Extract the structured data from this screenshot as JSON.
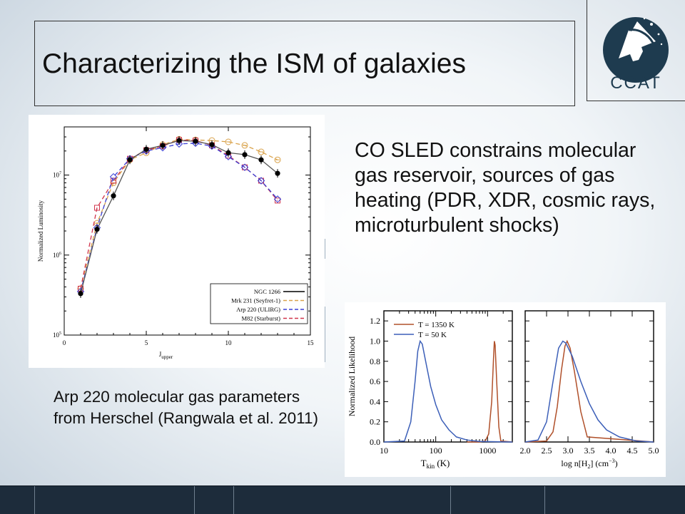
{
  "slide": {
    "title": "Characterizing the ISM of galaxies",
    "logo_text": "CCAT",
    "bullet": "CO SLED constrains molecular gas reservoir, sources of gas heating (PDR, XDR, cosmic rays, microturbulent shocks)",
    "caption": "Arp 220 molecular gas parameters from Herschel (Rangwala et al. 2011)",
    "colors": {
      "navy": "#1d2c3b",
      "logo": "#1e3b4f",
      "black": "#000000",
      "orange": "#d9a24a",
      "blue": "#3a3fd6",
      "red": "#d0344c",
      "brown": "#b0502a",
      "blue2": "#3c5fb8"
    }
  },
  "chart_data": [
    {
      "type": "line",
      "xlabel": "J_upper",
      "ylabel": "Normalized Luminosity",
      "xlim": [
        0,
        15
      ],
      "ylim": [
        100000,
        40000000
      ],
      "y_scale": "log",
      "x_ticks": [
        "0",
        "5",
        "10",
        "15"
      ],
      "y_ticks": [
        "10^5",
        "10^6",
        "10^7"
      ],
      "legend_position": "bottom-right",
      "x": [
        1,
        2,
        3,
        4,
        5,
        6,
        7,
        8,
        9,
        10,
        11,
        12,
        13
      ],
      "series": [
        {
          "name": "NGC 1266",
          "values": [
            330000,
            2100000,
            5500000,
            15500000,
            21000000,
            23500000,
            27000000,
            26500000,
            24000000,
            19000000,
            18000000,
            15500000,
            10500000
          ]
        },
        {
          "name": "Mrk 231 (Seyfret-1)",
          "values": [
            380000,
            2500000,
            8000000,
            15500000,
            19000000,
            24000000,
            28000000,
            27500000,
            27000000,
            26000000,
            23500000,
            19500000,
            15500000
          ]
        },
        {
          "name": "Arp 220 (ULIRG)",
          "values": [
            350000,
            2200000,
            9500000,
            16000000,
            20000000,
            22000000,
            24500000,
            25000000,
            23000000,
            17000000,
            12500000,
            8500000,
            5000000
          ]
        },
        {
          "name": "M82 (Starburst)",
          "values": [
            380000,
            3900000,
            8500000,
            16000000,
            20500000,
            23000000,
            27500000,
            27000000,
            23500000,
            17500000,
            12500000,
            8500000,
            4800000
          ]
        }
      ]
    },
    {
      "type": "line",
      "panel": "left",
      "xlabel": "T_kin (K)",
      "ylabel": "Normalized Likelihood",
      "x_scale": "log",
      "xlim": [
        10,
        3000
      ],
      "ylim": [
        0,
        1.3
      ],
      "x_ticks": [
        "10",
        "100",
        "1000"
      ],
      "y_ticks": [
        "0.0",
        "0.2",
        "0.4",
        "0.6",
        "0.8",
        "1.0",
        "1.2"
      ],
      "legend_position": "top-left",
      "series": [
        {
          "name": "T = 1350 K",
          "x": [
            400,
            700,
            900,
            1050,
            1200,
            1300,
            1350,
            1400,
            1500,
            1650,
            1800,
            3000
          ],
          "values": [
            0,
            0,
            0.01,
            0.08,
            0.4,
            0.82,
            1.0,
            0.96,
            0.6,
            0.15,
            0.01,
            0
          ]
        },
        {
          "name": "T = 50 K",
          "x": [
            10,
            25,
            33,
            40,
            45,
            50,
            55,
            65,
            80,
            100,
            130,
            180,
            250,
            400,
            700,
            3000
          ],
          "values": [
            0,
            0.01,
            0.2,
            0.6,
            0.9,
            1.0,
            0.97,
            0.78,
            0.55,
            0.37,
            0.22,
            0.12,
            0.05,
            0.02,
            0.005,
            0
          ]
        }
      ]
    },
    {
      "type": "line",
      "panel": "right",
      "xlabel": "log n[H2] (cm^-3)",
      "xlim": [
        2.0,
        5.0
      ],
      "ylim": [
        0,
        1.3
      ],
      "x_ticks": [
        "2.0",
        "2.5",
        "3.0",
        "3.5",
        "4.0",
        "4.5",
        "5.0"
      ],
      "series": [
        {
          "name": "T = 1350 K",
          "x": [
            2.0,
            2.5,
            2.65,
            2.75,
            2.85,
            2.93,
            2.98,
            3.05,
            3.15,
            3.3,
            3.45,
            5.0
          ],
          "values": [
            0,
            0.01,
            0.1,
            0.35,
            0.72,
            0.95,
            1.0,
            0.93,
            0.7,
            0.3,
            0.05,
            0
          ]
        },
        {
          "name": "T = 50 K",
          "x": [
            2.0,
            2.3,
            2.5,
            2.65,
            2.78,
            2.88,
            2.95,
            3.1,
            3.3,
            3.5,
            3.7,
            3.9,
            4.2,
            4.6,
            5.0
          ],
          "values": [
            0,
            0.02,
            0.2,
            0.6,
            0.93,
            1.0,
            0.98,
            0.85,
            0.6,
            0.38,
            0.22,
            0.12,
            0.05,
            0.01,
            0
          ]
        }
      ]
    }
  ]
}
